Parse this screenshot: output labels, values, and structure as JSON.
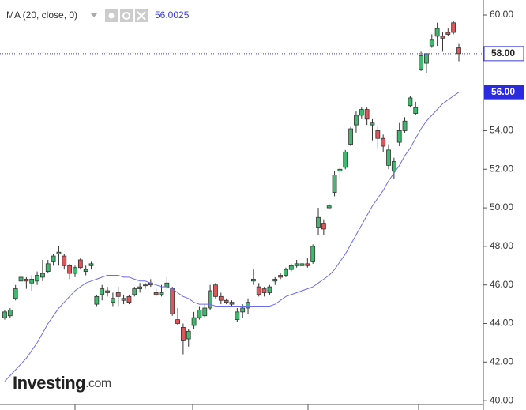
{
  "chart_data": {
    "type": "candlestick",
    "indicator_name": "MA (20, close, 0)",
    "indicator_value": "56.0025",
    "logo": "Investing",
    "logo_suffix": ".com",
    "ylim": [
      39.8,
      60.78
    ],
    "yticks": [
      {
        "value": 40,
        "label": "40.00"
      },
      {
        "value": 42,
        "label": "42.00"
      },
      {
        "value": 44,
        "label": "44.00"
      },
      {
        "value": 46,
        "label": "46.00"
      },
      {
        "value": 48,
        "label": "48.00"
      },
      {
        "value": 50,
        "label": "50.00"
      },
      {
        "value": 52,
        "label": "52.00"
      },
      {
        "value": 54,
        "label": "54.00"
      },
      {
        "value": 56,
        "label": "56.00"
      },
      {
        "value": 58,
        "label": "58.00"
      },
      {
        "value": 60,
        "label": "60.00"
      }
    ],
    "up_color": "#3dbb6c",
    "down_color": "#e2555a",
    "ma_color": "#6b6bf0",
    "last_price": {
      "value": 58,
      "label": "58.00"
    },
    "ma_last": {
      "value": 56,
      "label": "56.00"
    },
    "open": [
      44.3,
      44.4,
      45.3,
      46.2,
      46.3,
      46.1,
      46.2,
      46.4,
      46.7,
      47.2,
      47.6,
      47.5,
      47.0,
      46.6,
      47.3,
      46.7,
      47.0,
      45.0,
      45.5,
      45.7,
      45.1,
      45.6,
      45.2,
      45.4,
      45.5,
      45.8,
      46.0,
      46.1,
      45.6,
      45.5,
      45.9,
      45.8,
      44.2,
      43.8,
      43.2,
      43.9,
      44.3,
      44.4,
      44.8,
      46.0,
      45.4,
      45.2,
      45.1,
      44.2,
      44.6,
      44.8,
      46.2,
      45.9,
      45.8,
      45.6,
      46.2,
      46.5,
      46.5,
      46.8,
      47.0,
      47.0,
      47.1,
      47.2,
      49.0,
      49.2,
      50.0,
      50.8,
      51.9,
      52.1,
      53.3,
      54.3,
      54.8,
      55.1,
      54.3,
      54.0,
      53.6,
      52.2,
      51.9,
      53.4,
      54.0,
      55.3,
      54.9,
      57.2,
      57.5,
      58.4,
      58.9,
      58.9,
      59.1,
      59.6,
      58.3
    ],
    "high": [
      44.7,
      44.8,
      46.0,
      46.6,
      46.4,
      46.5,
      46.7,
      47.3,
      47.3,
      47.6,
      48.0,
      47.6,
      47.1,
      47.0,
      47.4,
      47.0,
      47.2,
      45.5,
      46.0,
      45.9,
      45.6,
      45.9,
      45.5,
      45.5,
      45.9,
      46.1,
      46.1,
      46.3,
      45.8,
      46.0,
      46.4,
      45.9,
      44.8,
      44.0,
      43.7,
      44.6,
      44.9,
      45.0,
      46.0,
      46.1,
      45.6,
      45.3,
      45.2,
      44.8,
      45.0,
      45.3,
      46.8,
      46.1,
      45.9,
      46.0,
      46.4,
      46.6,
      46.9,
      47.1,
      47.3,
      47.2,
      47.4,
      48.1,
      50.0,
      49.4,
      50.2,
      51.9,
      52.1,
      53.0,
      54.2,
      55.0,
      55.2,
      55.2,
      54.6,
      54.2,
      53.8,
      53.3,
      52.6,
      54.4,
      54.7,
      55.8,
      55.5,
      58.1,
      58.0,
      59.0,
      59.6,
      59.1,
      59.3,
      59.7,
      58.5
    ],
    "low": [
      44.2,
      44.3,
      45.2,
      45.9,
      45.8,
      45.7,
      46.0,
      46.2,
      46.6,
      47.0,
      47.0,
      46.8,
      46.3,
      46.4,
      46.8,
      46.5,
      46.8,
      44.9,
      45.2,
      45.4,
      44.9,
      44.9,
      45.0,
      45.0,
      45.4,
      45.6,
      45.8,
      45.9,
      45.4,
      45.4,
      45.8,
      44.4,
      43.9,
      42.4,
      42.8,
      43.7,
      44.2,
      44.3,
      44.7,
      45.3,
      45.0,
      45.0,
      44.9,
      44.1,
      44.3,
      44.5,
      46.0,
      45.4,
      45.4,
      45.5,
      46.0,
      46.3,
      46.4,
      46.7,
      46.9,
      46.8,
      46.9,
      47.1,
      48.6,
      48.6,
      49.9,
      50.6,
      51.5,
      52.0,
      53.2,
      53.9,
      54.6,
      54.3,
      53.5,
      53.1,
      52.9,
      52.0,
      51.5,
      53.2,
      53.9,
      55.2,
      54.8,
      57.1,
      57.0,
      58.3,
      58.4,
      58.1,
      58.9,
      59.0,
      57.6
    ],
    "close": [
      44.6,
      44.7,
      45.8,
      46.4,
      46.2,
      46.3,
      46.5,
      46.6,
      47.1,
      47.5,
      47.7,
      47.0,
      46.6,
      46.9,
      46.9,
      46.8,
      47.1,
      45.4,
      45.8,
      45.6,
      45.3,
      45.4,
      45.3,
      45.1,
      45.8,
      45.9,
      46.0,
      46.0,
      45.5,
      45.6,
      46.1,
      44.5,
      44.0,
      43.1,
      43.6,
      44.3,
      44.7,
      44.8,
      45.7,
      45.4,
      45.2,
      45.1,
      45.0,
      44.6,
      44.8,
      45.1,
      46.3,
      45.5,
      45.6,
      45.9,
      46.3,
      46.4,
      46.8,
      47.0,
      47.1,
      47.1,
      47.0,
      48.0,
      49.5,
      48.9,
      50.1,
      51.7,
      52.0,
      52.9,
      54.1,
      54.8,
      55.1,
      54.6,
      54.4,
      53.6,
      53.2,
      53.0,
      52.4,
      54.0,
      54.5,
      55.7,
      55.2,
      57.9,
      58.0,
      58.7,
      59.3,
      58.8,
      59.0,
      59.1,
      58.0
    ],
    "ma": [
      41.0,
      41.3,
      41.6,
      41.9,
      42.2,
      42.6,
      43.0,
      43.5,
      44.0,
      44.4,
      44.8,
      45.1,
      45.4,
      45.7,
      45.9,
      46.1,
      46.2,
      46.3,
      46.4,
      46.5,
      46.5,
      46.5,
      46.4,
      46.4,
      46.3,
      46.2,
      46.2,
      46.1,
      46.0,
      45.9,
      45.9,
      45.8,
      45.6,
      45.4,
      45.3,
      45.1,
      45.0,
      45.0,
      45.0,
      44.9,
      44.9,
      44.9,
      44.9,
      44.9,
      44.9,
      44.9,
      44.9,
      44.9,
      44.9,
      44.9,
      45.0,
      45.2,
      45.4,
      45.5,
      45.6,
      45.7,
      45.8,
      45.9,
      46.1,
      46.3,
      46.5,
      46.8,
      47.2,
      47.6,
      48.1,
      48.6,
      49.1,
      49.6,
      50.1,
      50.5,
      50.9,
      51.4,
      51.8,
      52.2,
      52.7,
      53.1,
      53.6,
      54.1,
      54.5,
      54.8,
      55.1,
      55.4,
      55.6,
      55.8,
      56.0
    ]
  }
}
